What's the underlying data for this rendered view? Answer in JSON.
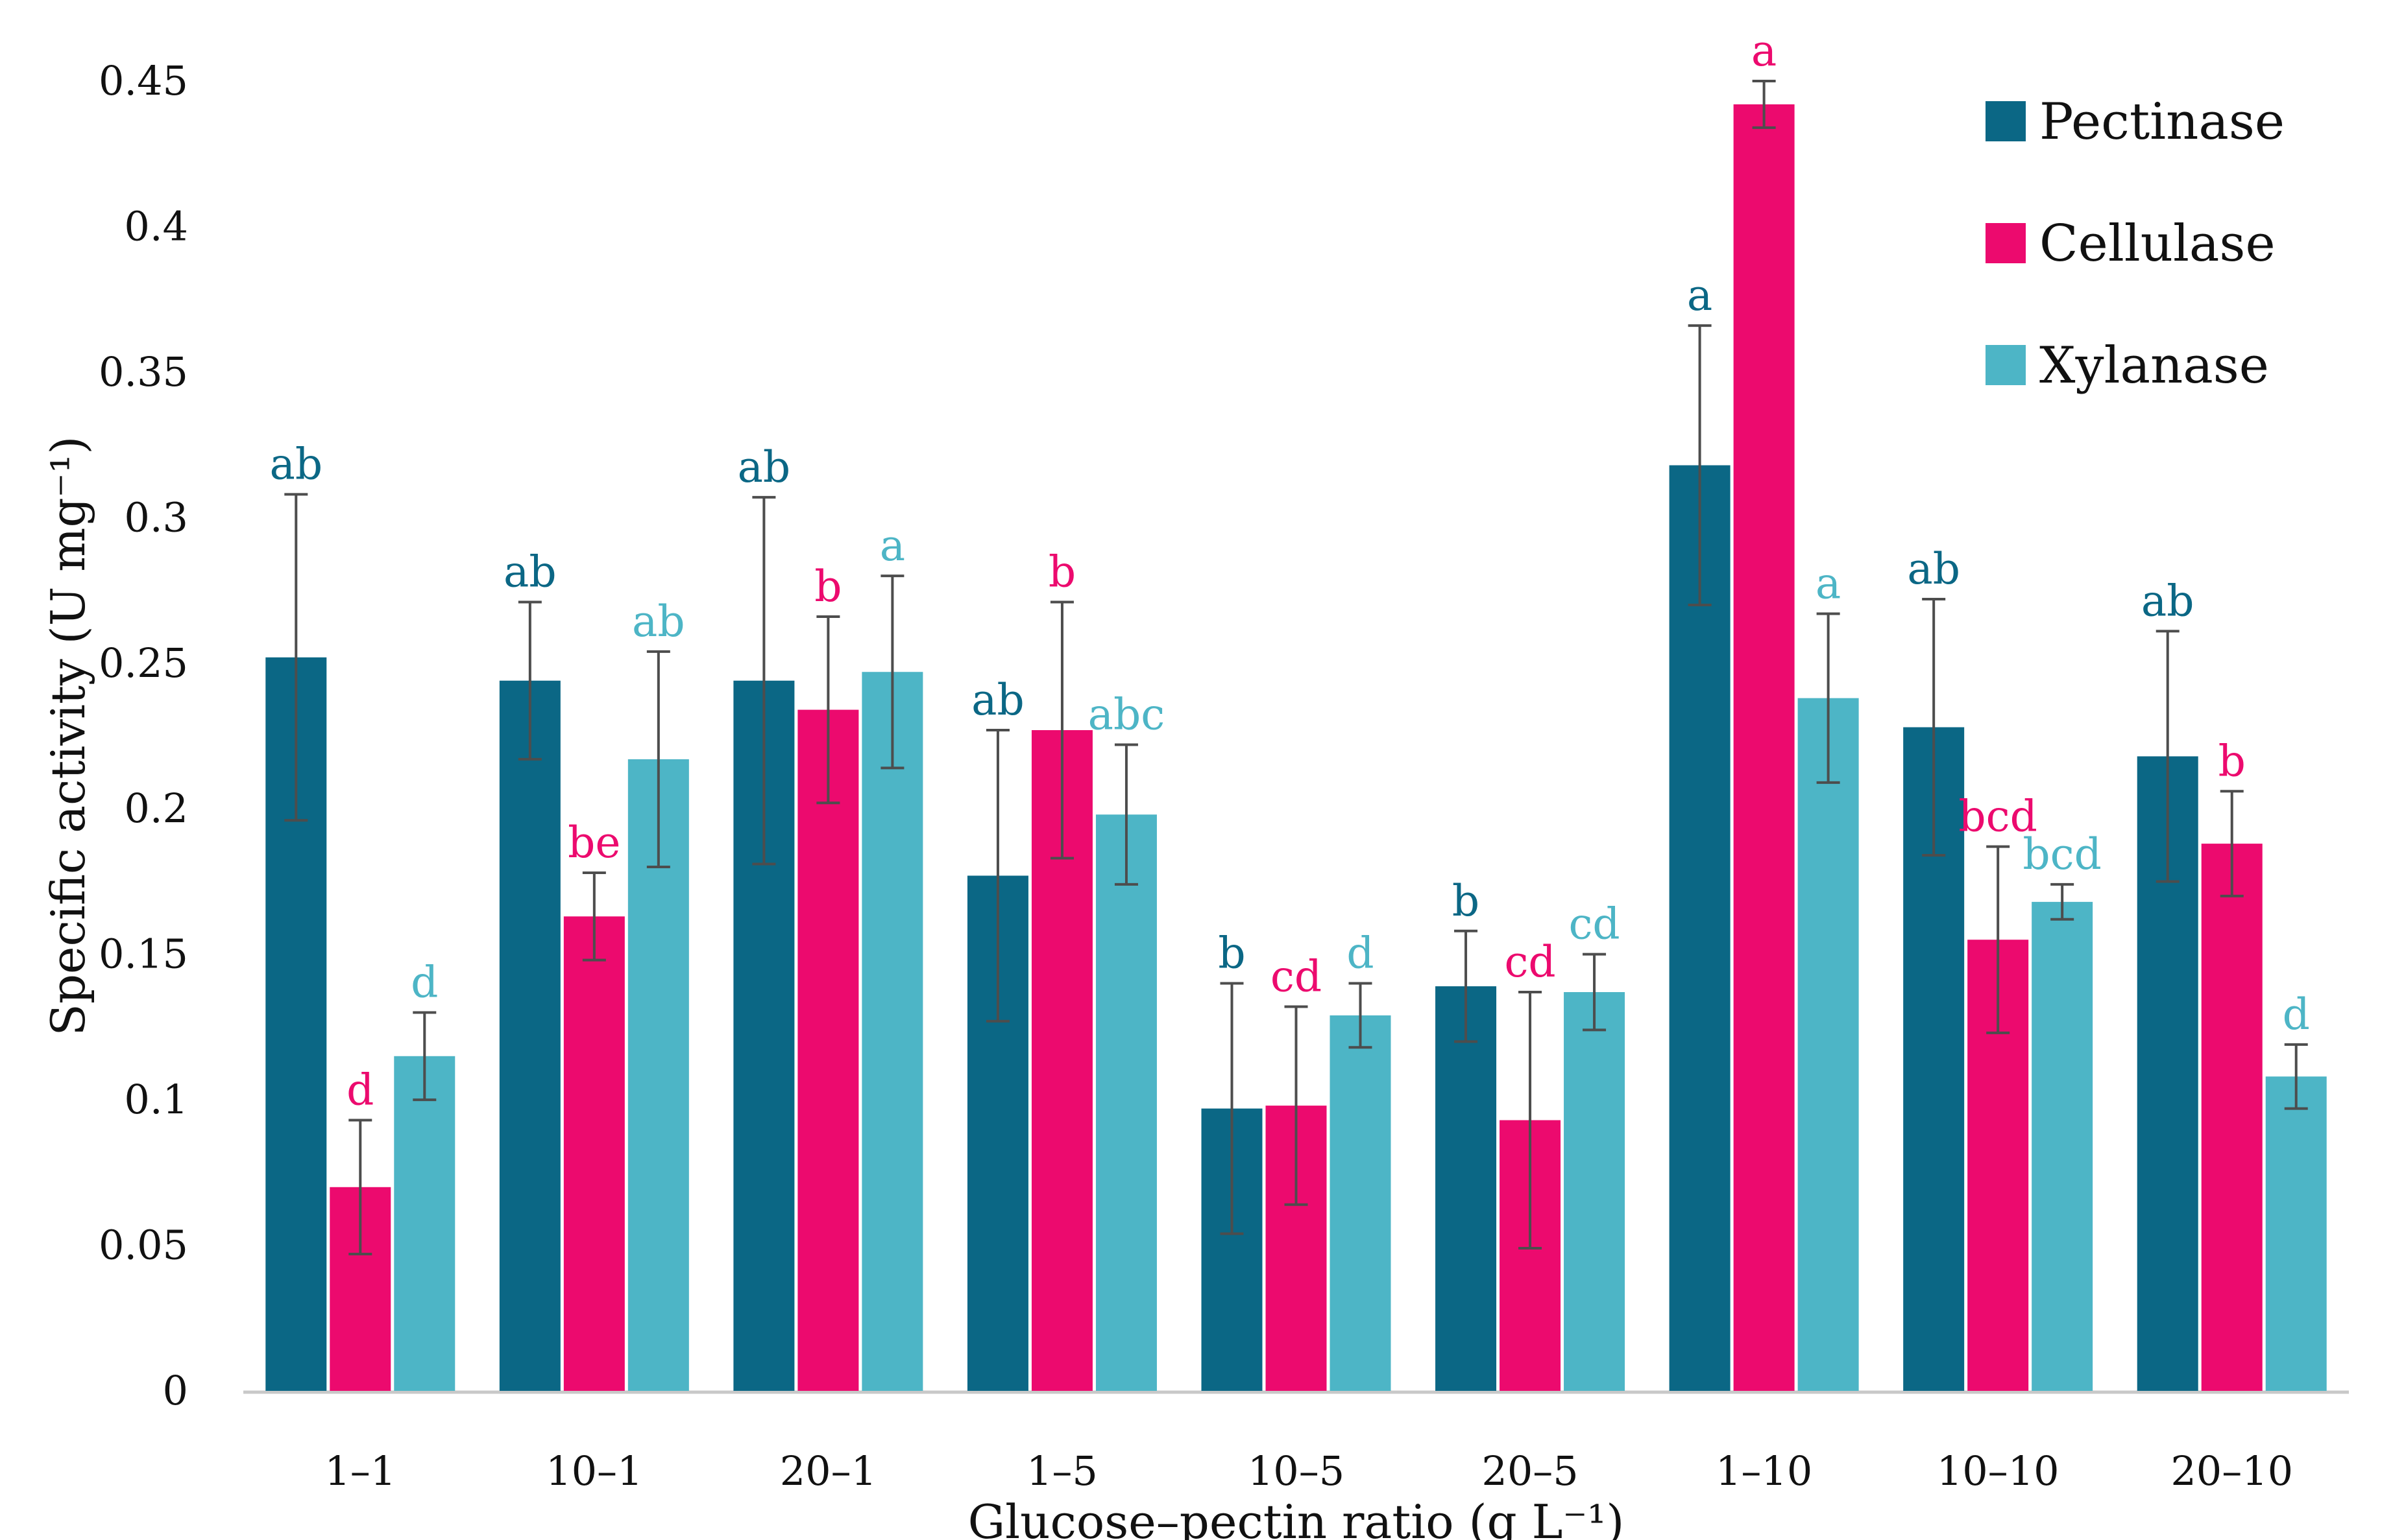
{
  "chart_data": {
    "type": "bar",
    "title": "",
    "xlabel": "Glucose–pectin ratio (g L⁻¹)",
    "ylabel": "Specific activity (U mg⁻¹)",
    "ylim": [
      0,
      0.45
    ],
    "yticks": [
      "0",
      "0.05",
      "0.1",
      "0.15",
      "0.2",
      "0.25",
      "0.3",
      "0.35",
      "0.4",
      "0.45"
    ],
    "ytick_values": [
      0,
      0.05,
      0.1,
      0.15,
      0.2,
      0.25,
      0.3,
      0.35,
      0.4,
      0.45
    ],
    "grid": false,
    "legend_position": "top-right",
    "categories": [
      "1–1",
      "10–1",
      "20–1",
      "1–5",
      "10–5",
      "20–5",
      "1–10",
      "10–10",
      "20–10"
    ],
    "series": [
      {
        "name": "Pectinase",
        "color": "#0b6785",
        "values": [
          0.252,
          0.244,
          0.244,
          0.177,
          0.097,
          0.139,
          0.318,
          0.228,
          0.218
        ],
        "errors": [
          0.056,
          0.027,
          0.063,
          0.05,
          0.043,
          0.019,
          0.048,
          0.044,
          0.043
        ],
        "letters": [
          "ab",
          "ab",
          "ab",
          "ab",
          "b",
          "b",
          "a",
          "ab",
          "ab"
        ]
      },
      {
        "name": "Cellulase",
        "color": "#ec0a6e",
        "values": [
          0.07,
          0.163,
          0.234,
          0.227,
          0.098,
          0.093,
          0.442,
          0.155,
          0.188
        ],
        "errors": [
          0.023,
          0.015,
          0.032,
          0.044,
          0.034,
          0.044,
          0.008,
          0.032,
          0.018
        ],
        "letters": [
          "d",
          "be",
          "b",
          "b",
          "cd",
          "cd",
          "a",
          "bcd",
          "b"
        ]
      },
      {
        "name": "Xylanase",
        "color": "#4db5c6",
        "values": [
          0.115,
          0.217,
          0.247,
          0.198,
          0.129,
          0.137,
          0.238,
          0.168,
          0.108
        ],
        "errors": [
          0.015,
          0.037,
          0.033,
          0.024,
          0.011,
          0.013,
          0.029,
          0.006,
          0.011
        ],
        "letters": [
          "d",
          "ab",
          "a",
          "abc",
          "d",
          "cd",
          "a",
          "bcd",
          "d"
        ]
      }
    ]
  }
}
